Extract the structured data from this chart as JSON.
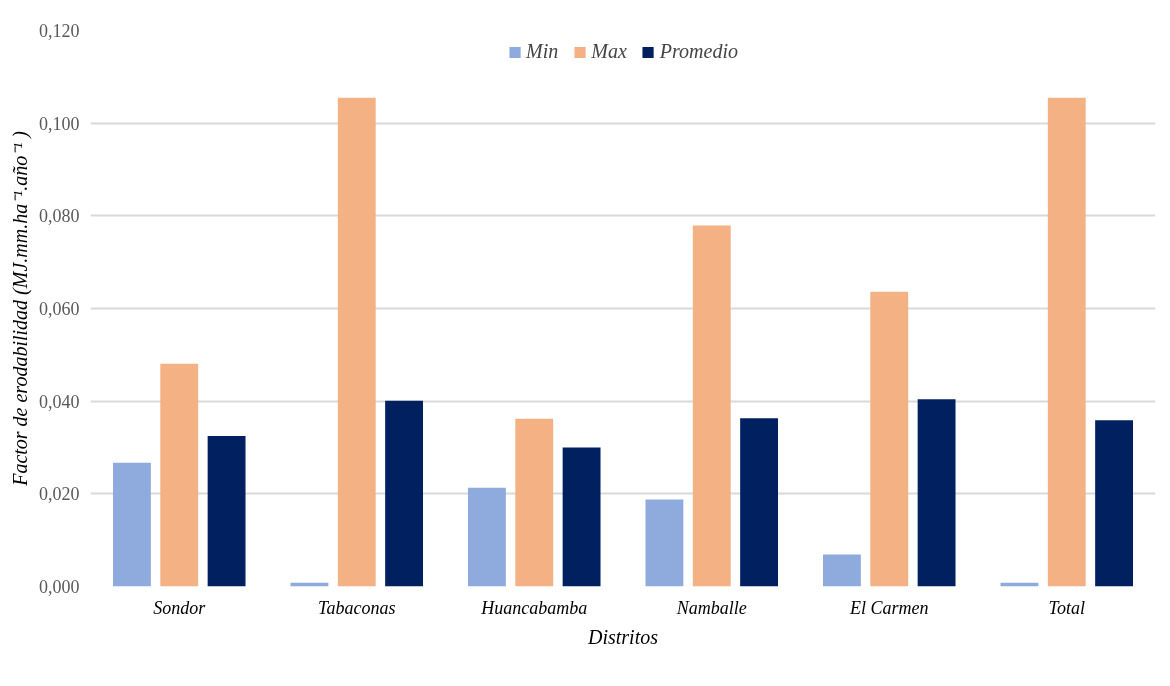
{
  "chart_data": {
    "type": "bar",
    "xlabel": "Distritos",
    "ylabel": "Factor de erodabilidad (MJ.mm.ha⁻¹.año⁻¹ )",
    "categories": [
      "Sondor",
      "Tabaconas",
      "Huancabamba",
      "Namballe",
      "El Carmen",
      "Total"
    ],
    "series": [
      {
        "name": "Min",
        "color": "#8faadc",
        "values": [
          0.0267,
          0.0008,
          0.0213,
          0.0188,
          0.0069,
          0.0008
        ]
      },
      {
        "name": "Max",
        "color": "#f4b183",
        "values": [
          0.0481,
          0.1055,
          0.0362,
          0.0779,
          0.0636,
          0.1055
        ]
      },
      {
        "name": "Promedio",
        "color": "#002060",
        "values": [
          0.0325,
          0.0401,
          0.03,
          0.0363,
          0.0404,
          0.0359
        ]
      }
    ],
    "ylim": [
      0,
      0.12
    ],
    "yticks": [
      {
        "value": 0,
        "label": "0,000"
      },
      {
        "value": 0.02,
        "label": "0,020"
      },
      {
        "value": 0.04,
        "label": "0,040"
      },
      {
        "value": 0.06,
        "label": "0,060"
      },
      {
        "value": 0.08,
        "label": "0,080"
      },
      {
        "value": 0.1,
        "label": "0,100"
      },
      {
        "value": 0.12,
        "label": "0,120"
      }
    ],
    "grid": "y",
    "legend": "top"
  }
}
